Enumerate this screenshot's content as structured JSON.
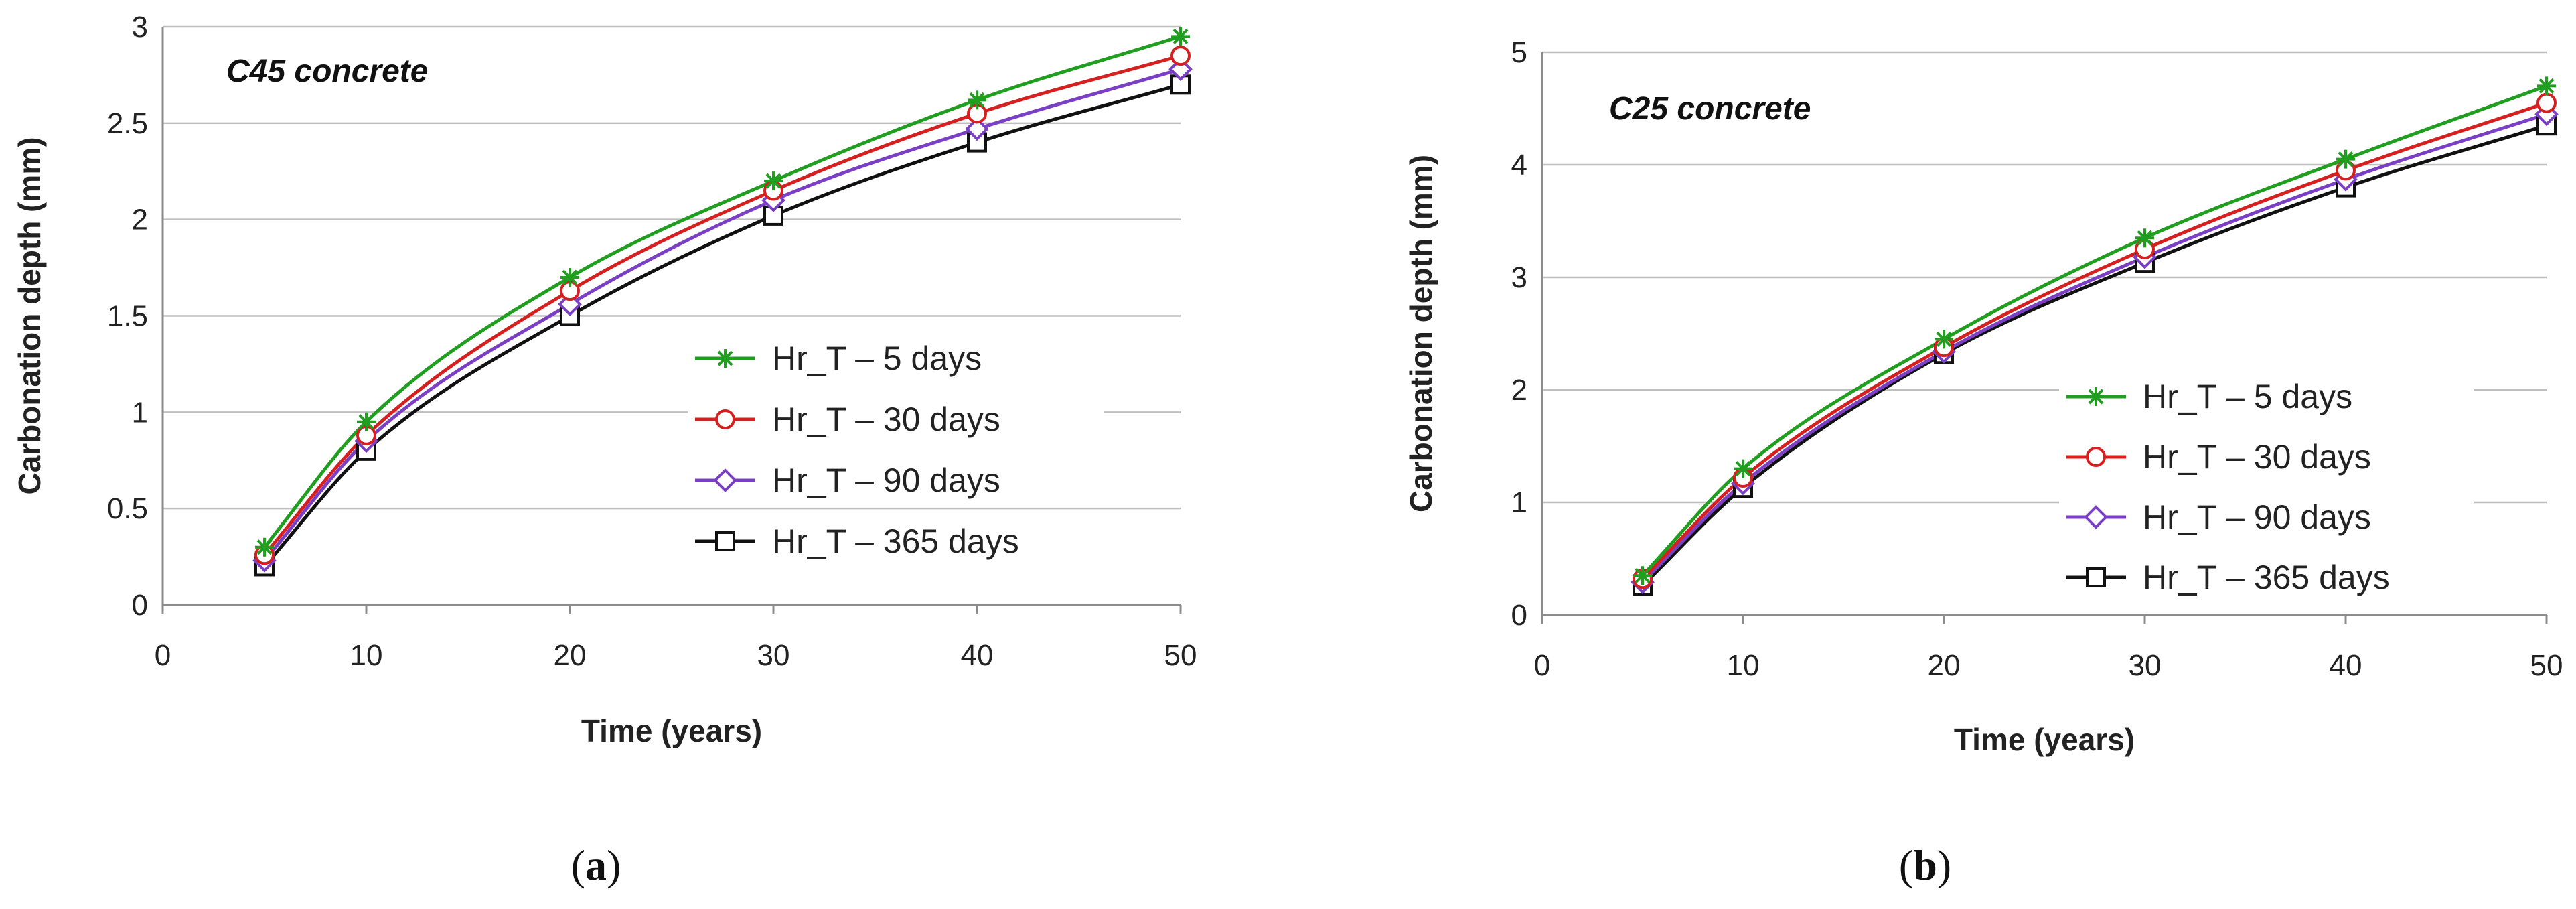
{
  "chart_data": [
    {
      "type": "line",
      "panel_label": "a",
      "annotation": "C45 concrete",
      "xlabel": "Time (years)",
      "ylabel": "Carbonation depth (mm)",
      "xlim": [
        0,
        50
      ],
      "ylim": [
        0,
        3
      ],
      "xticks": [
        0,
        10,
        20,
        30,
        40,
        50
      ],
      "yticks": [
        0,
        0.5,
        1,
        1.5,
        2,
        2.5,
        3
      ],
      "ytick_labels": [
        "0",
        "0.5",
        "1",
        "1.5",
        "2",
        "2.5",
        "3"
      ],
      "grid": "horizontal",
      "legend_position": "center-right",
      "x": [
        5,
        10,
        20,
        30,
        40,
        50
      ],
      "series": [
        {
          "name": "Hr_T – 5 days",
          "color": "#1f9e1f",
          "marker": "star",
          "values": [
            0.3,
            0.95,
            1.7,
            2.2,
            2.62,
            2.95
          ]
        },
        {
          "name": "Hr_T – 30 days",
          "color": "#d62020",
          "marker": "circle",
          "values": [
            0.26,
            0.88,
            1.63,
            2.15,
            2.55,
            2.85
          ]
        },
        {
          "name": "Hr_T – 90 days",
          "color": "#7a3fc4",
          "marker": "diamond",
          "values": [
            0.23,
            0.85,
            1.56,
            2.1,
            2.47,
            2.78
          ]
        },
        {
          "name": "Hr_T – 365 days",
          "color": "#111111",
          "marker": "square",
          "values": [
            0.2,
            0.8,
            1.5,
            2.02,
            2.4,
            2.7
          ]
        }
      ]
    },
    {
      "type": "line",
      "panel_label": "b",
      "annotation": "C25 concrete",
      "xlabel": "Time (years)",
      "ylabel": "Carbonation depth (mm)",
      "xlim": [
        0,
        50
      ],
      "ylim": [
        0,
        5
      ],
      "xticks": [
        0,
        10,
        20,
        30,
        40,
        50
      ],
      "yticks": [
        0,
        1,
        2,
        3,
        4,
        5
      ],
      "ytick_labels": [
        "0",
        "1",
        "2",
        "3",
        "4",
        "5"
      ],
      "grid": "horizontal",
      "legend_position": "center-right",
      "x": [
        5,
        10,
        20,
        30,
        40,
        50
      ],
      "series": [
        {
          "name": "Hr_T – 5 days",
          "color": "#1f9e1f",
          "marker": "star",
          "values": [
            0.35,
            1.3,
            2.45,
            3.35,
            4.05,
            4.7
          ]
        },
        {
          "name": "Hr_T – 30 days",
          "color": "#d62020",
          "marker": "circle",
          "values": [
            0.32,
            1.22,
            2.38,
            3.25,
            3.95,
            4.55
          ]
        },
        {
          "name": "Hr_T – 90 days",
          "color": "#7a3fc4",
          "marker": "diamond",
          "values": [
            0.29,
            1.17,
            2.34,
            3.18,
            3.87,
            4.45
          ]
        },
        {
          "name": "Hr_T – 365 days",
          "color": "#111111",
          "marker": "square",
          "values": [
            0.26,
            1.13,
            2.32,
            3.13,
            3.8,
            4.35
          ]
        }
      ]
    }
  ]
}
